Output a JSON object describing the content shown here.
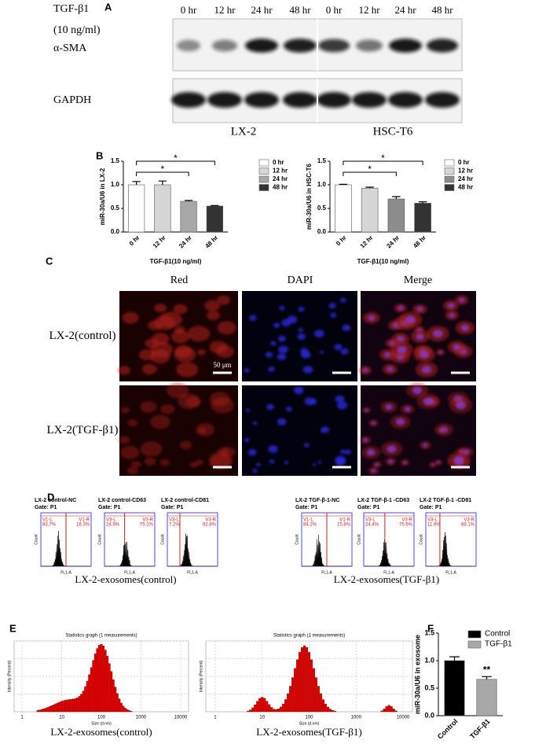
{
  "panel_a": {
    "label": "A",
    "treatment": "TGF-β1",
    "dose": "(10 ng/ml)",
    "times": [
      "0 hr",
      "12 hr",
      "24 hr",
      "48 hr",
      "0 hr",
      "12 hr",
      "24 hr",
      "48 hr"
    ],
    "rows": [
      "α-SMA",
      "GAPDH"
    ],
    "cells": [
      "LX-2",
      "HSC-T6"
    ]
  },
  "panel_b": {
    "label": "B"
  },
  "chart_data": [
    {
      "type": "bar",
      "y_label": "miR-30a/U6 in LX-2",
      "x_label": "TGF-β1(10 ng/ml)",
      "categories": [
        "0 hr",
        "12 hr",
        "24 hr",
        "48 hr"
      ],
      "values": [
        1.0,
        1.0,
        0.65,
        0.55
      ],
      "errors": [
        0.07,
        0.08,
        0.02,
        0.01
      ],
      "colors": [
        "#ffffff",
        "#d6d6d6",
        "#a8a8a8",
        "#333333"
      ],
      "ylim": [
        0,
        1.5
      ],
      "yticks": [
        {
          "value": 0,
          "label": "0.0"
        },
        {
          "value": 0.5,
          "label": "0.5"
        },
        {
          "value": 1,
          "label": "1.0"
        },
        {
          "value": 1.5,
          "label": "1.5"
        }
      ],
      "annotations": [
        "*",
        "*"
      ],
      "legend": true
    },
    {
      "type": "bar",
      "y_label": "miR-30a/U6 in HSC-T6",
      "x_label": "TGF-β1(10 ng/ml)",
      "categories": [
        "0 hr",
        "12 hr",
        "24 hr",
        "48 hr"
      ],
      "values": [
        1.0,
        0.93,
        0.7,
        0.61
      ],
      "errors": [
        0.01,
        0.02,
        0.05,
        0.03
      ],
      "colors": [
        "#ffffff",
        "#d6d6d6",
        "#8c8c8c",
        "#333333"
      ],
      "ylim": [
        0,
        1.5
      ],
      "yticks": [
        {
          "value": 0,
          "label": "0.0"
        },
        {
          "value": 0.5,
          "label": "0.5"
        },
        {
          "value": 1,
          "label": "1.0"
        },
        {
          "value": 1.5,
          "label": "1.5"
        }
      ],
      "annotations": [
        "*",
        "*"
      ],
      "legend": true
    },
    {
      "type": "bar",
      "y_label": "miR-30a/U6 in exosome",
      "categories": [
        "Control",
        "TGF-β1"
      ],
      "values": [
        1.0,
        0.66
      ],
      "errors": [
        0.07,
        0.05
      ],
      "colors": [
        "#000000",
        "#a8a8a8"
      ],
      "ylim": [
        0,
        1.5
      ],
      "yticks": [
        {
          "value": 0,
          "label": "0.0"
        },
        {
          "value": 0.5,
          "label": "0.5"
        },
        {
          "value": 1,
          "label": "1.0"
        },
        {
          "value": 1.5,
          "label": "1.5"
        }
      ],
      "annotations": [
        "**"
      ],
      "legend": true
    }
  ],
  "panel_c": {
    "label": "C",
    "columns": [
      "Red",
      "DAPI",
      "Merge"
    ],
    "rows": [
      "LX-2(control)",
      "LX-2(TGF-β1)"
    ],
    "scale": "50 μm"
  },
  "panel_d": {
    "label": "D",
    "x_label": "FL1-A",
    "y_label": "Count",
    "plots": [
      {
        "title": "LX-2 control-NC",
        "gate": "Gate: P1",
        "left": "V1-L",
        "left_pct": "83.7%",
        "right": "V1-R",
        "right_pct": "16.3%"
      },
      {
        "title": "LX-2 control-CD63",
        "gate": "Gate: P1",
        "left": "V3-L",
        "left_pct": "24.9%",
        "right": "V3-R",
        "right_pct": "75.1%"
      },
      {
        "title": "LX-2 control-CD81",
        "gate": "Gate: P1",
        "left": "V3-L",
        "left_pct": "7.2%",
        "right": "V3-R",
        "right_pct": "92.8%"
      },
      {
        "title": "LX-2 TGF-β-1-NC",
        "gate": "Gate: P1",
        "left": "V1-L",
        "left_pct": "84.2%",
        "right": "V1-R",
        "right_pct": "15.8%"
      },
      {
        "title": "LX-2 TGF-β-1 -CD63",
        "gate": "Gate: P1",
        "left": "V3-L",
        "left_pct": "24.4%",
        "right": "V3-R",
        "right_pct": "75.6%"
      },
      {
        "title": "LX-2 TGF-β-1 -CD81",
        "gate": "Gate: P1",
        "left": "V3-L",
        "left_pct": "11.9%",
        "right": "V3-R",
        "right_pct": "88.1%"
      }
    ],
    "groups": [
      "LX-2-exosomes(control)",
      "LX-2-exosomes(TGF-β1)"
    ]
  },
  "panel_e": {
    "label": "E",
    "title": "Statistics graph (1 measurements)",
    "x_label": "Size (d.nm)",
    "y_label": "Intensity (Percent)",
    "xticks": [
      "1",
      "10",
      "100",
      "1000",
      "10000"
    ],
    "groups": [
      "LX-2-exosomes(control)",
      "LX-2-exosomes(TGF-β1)"
    ]
  },
  "panel_f": {
    "label": "F"
  }
}
